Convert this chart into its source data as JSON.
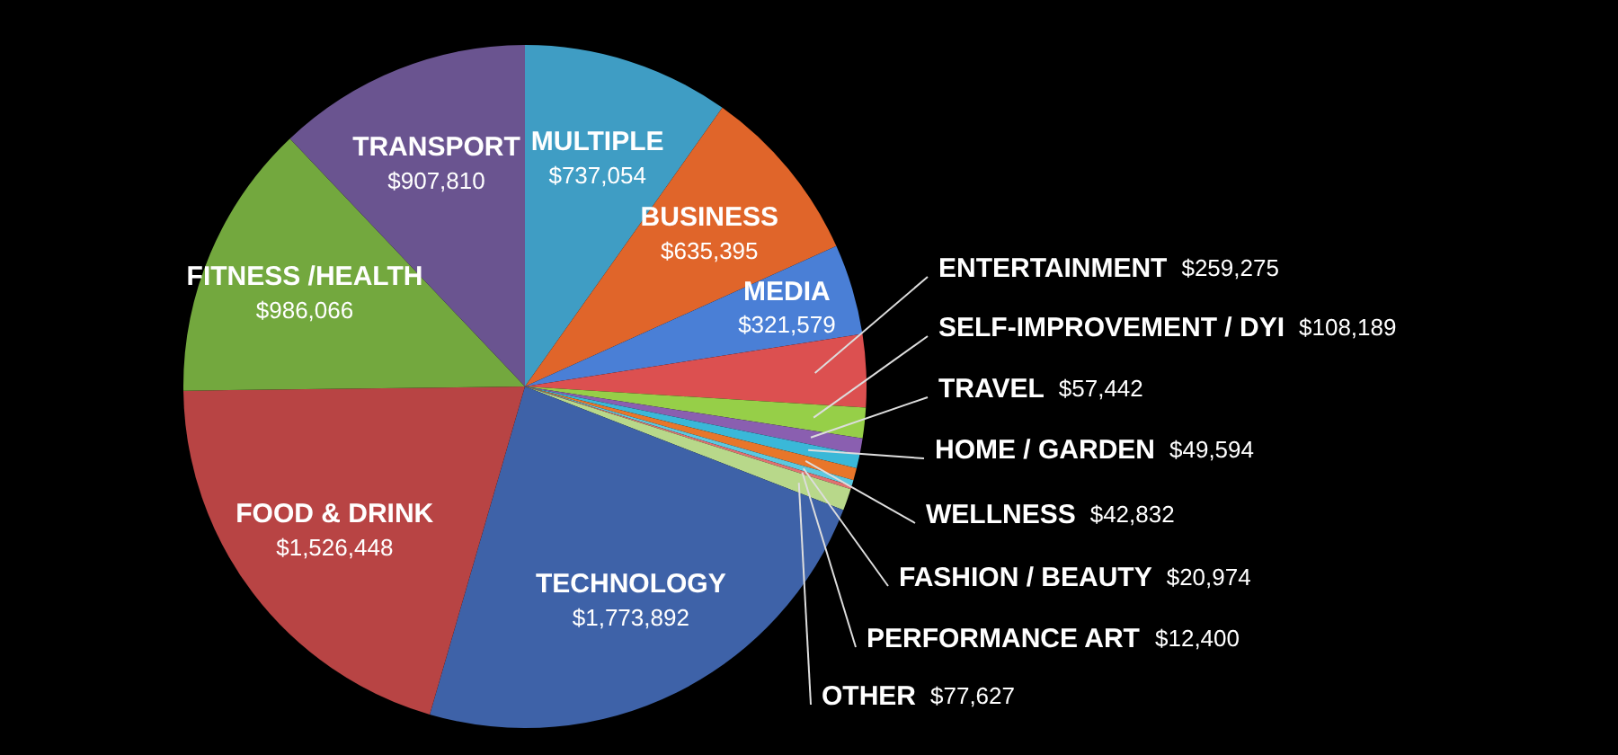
{
  "chart_data": {
    "type": "pie",
    "categories": [
      "MULTIPLE",
      "BUSINESS",
      "MEDIA",
      "ENTERTAINMENT",
      "SELF-IMPROVEMENT / DYI",
      "TRAVEL",
      "HOME / GARDEN",
      "WELLNESS",
      "FASHION / BEAUTY",
      "PERFORMANCE ART",
      "OTHER",
      "TECHNOLOGY",
      "FOOD & DRINK",
      "FITNESS /HEALTH",
      "TRANSPORT"
    ],
    "values": [
      737054,
      635395,
      321579,
      259275,
      108189,
      57442,
      49594,
      42832,
      20974,
      12400,
      77627,
      1773892,
      1526448,
      986066,
      907810
    ],
    "value_labels": [
      "$737,054",
      "$635,395",
      "$321,579",
      "$259,275",
      "$108,189",
      "$57,442",
      "$49,594",
      "$42,832",
      "$20,974",
      "$12,400",
      "$77,627",
      "$1,773,892",
      "$1,526,448",
      "$986,066",
      "$907,810"
    ],
    "colors": [
      "#3f9dc4",
      "#e0652a",
      "#4a7fd6",
      "#dc5050",
      "#96cf48",
      "#8a5fb0",
      "#3ab8d8",
      "#e8762a",
      "#5ac8e0",
      "#e07070",
      "#b8d88a",
      "#3e62a8",
      "#b84444",
      "#73a83e",
      "#6a5490"
    ],
    "legend": false
  }
}
